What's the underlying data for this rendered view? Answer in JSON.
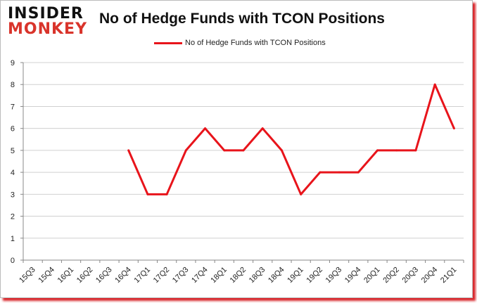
{
  "logo": {
    "line1": "INSIDER",
    "line2": "MONKEY"
  },
  "chart_data": {
    "type": "line",
    "title": "No of Hedge Funds with TCON Positions",
    "categories": [
      "15Q3",
      "15Q4",
      "16Q1",
      "16Q2",
      "16Q3",
      "16Q4",
      "17Q1",
      "17Q2",
      "17Q3",
      "17Q4",
      "18Q1",
      "18Q2",
      "18Q3",
      "18Q4",
      "19Q1",
      "19Q2",
      "19Q3",
      "19Q4",
      "20Q1",
      "20Q2",
      "20Q3",
      "20Q4",
      "21Q1"
    ],
    "series": [
      {
        "name": "No of Hedge Funds with TCON Positions",
        "color": "#e8141b",
        "values": [
          null,
          null,
          null,
          null,
          null,
          5,
          3,
          3,
          5,
          6,
          5,
          5,
          6,
          5,
          3,
          4,
          4,
          4,
          5,
          5,
          5,
          8,
          6
        ]
      }
    ],
    "ylim": [
      0,
      9
    ],
    "yticks": [
      0,
      1,
      2,
      3,
      4,
      5,
      6,
      7,
      8,
      9
    ],
    "grid": true,
    "legend": "top"
  }
}
